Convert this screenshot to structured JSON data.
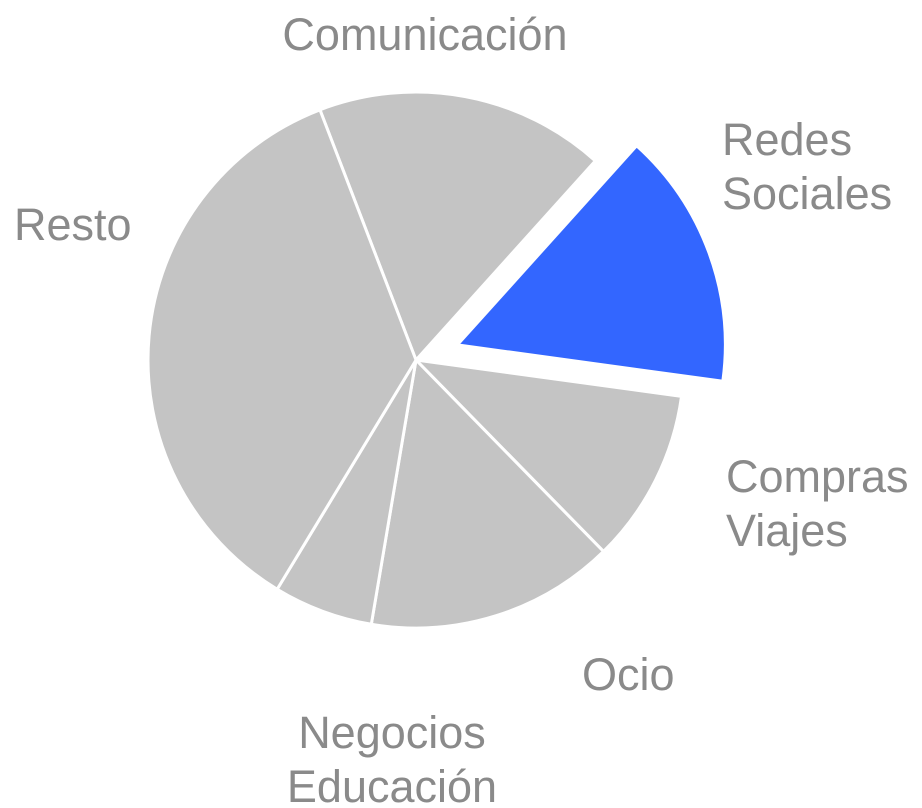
{
  "chart_data": {
    "type": "pie",
    "title": "",
    "slices": [
      {
        "label": [
          "Comunicación"
        ],
        "value": 17.5,
        "color": "#c4c4c4",
        "exploded": false
      },
      {
        "label": [
          "Redes",
          "Sociales"
        ],
        "value": 15.5,
        "color": "#3366ff",
        "exploded": true
      },
      {
        "label": [
          "Compras",
          "Viajes"
        ],
        "value": 10.5,
        "color": "#c4c4c4",
        "exploded": false
      },
      {
        "label": [
          "Ocio"
        ],
        "value": 15.0,
        "color": "#c4c4c4",
        "exploded": false
      },
      {
        "label": [
          "Negocios",
          "Educación"
        ],
        "value": 6.0,
        "color": "#c4c4c4",
        "exploded": false
      },
      {
        "label": [
          "Resto"
        ],
        "value": 35.5,
        "color": "#c4c4c4",
        "exploded": false
      }
    ],
    "start_angle_deg": -21,
    "direction": "clockwise",
    "legend": "none",
    "labels": "outside"
  }
}
